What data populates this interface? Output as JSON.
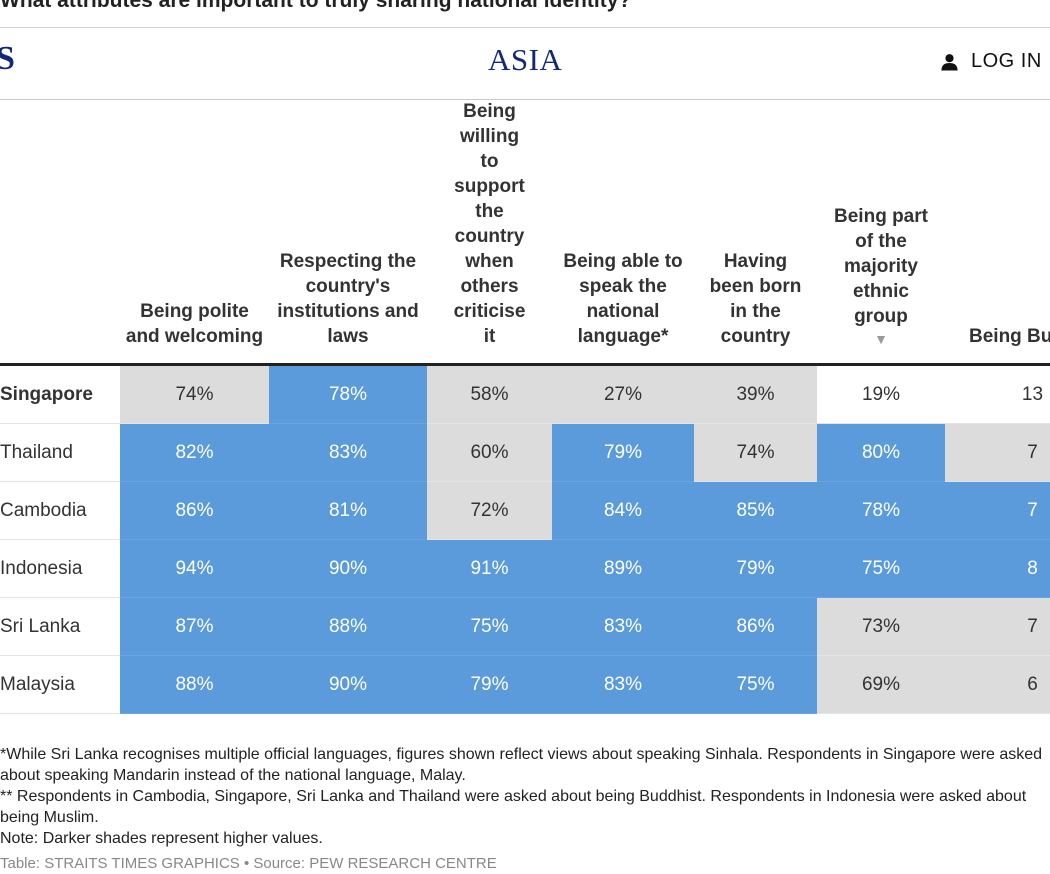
{
  "title": "What attributes are important to truly sharing national identity?",
  "navbar": {
    "brand_fragment": "S",
    "edition": "ASIA",
    "login_label": "LOG IN",
    "brand_color": "#14297a"
  },
  "table": {
    "corner_header": "",
    "columns": [
      "Being polite and welcoming",
      "Respecting the country's institutions and laws",
      "Being willing to support the country when others criticise it",
      "Being able to speak the national language*",
      "Having been born in the country",
      "Being part of the majority ethnic group",
      "Being Buddhist"
    ],
    "sort_indicator": "▼",
    "rows": [
      {
        "country": "Singapore",
        "values": [
          "74%",
          "78%",
          "58%",
          "27%",
          "39%",
          "19%",
          "13"
        ]
      },
      {
        "country": "Thailand",
        "values": [
          "82%",
          "83%",
          "60%",
          "79%",
          "74%",
          "80%",
          "7"
        ]
      },
      {
        "country": "Cambodia",
        "values": [
          "86%",
          "81%",
          "72%",
          "84%",
          "85%",
          "78%",
          "7"
        ]
      },
      {
        "country": "Indonesia",
        "values": [
          "94%",
          "90%",
          "91%",
          "89%",
          "79%",
          "75%",
          "8"
        ]
      },
      {
        "country": "Sri Lanka",
        "values": [
          "87%",
          "88%",
          "75%",
          "83%",
          "86%",
          "73%",
          "7"
        ]
      },
      {
        "country": "Malaysia",
        "values": [
          "88%",
          "90%",
          "79%",
          "83%",
          "75%",
          "69%",
          "6"
        ]
      }
    ],
    "colors": {
      "high": "#5b9bdb",
      "medium": "#dcdcdc",
      "low": "#ffffff"
    }
  },
  "notes": [
    "*While Sri Lanka recognises multiple official languages, figures shown reflect views about speaking Sinhala. Respondents in Singapore were asked about speaking Mandarin instead of the national language, Malay.",
    "** Respondents in Cambodia, Singapore, Sri Lanka and Thailand were asked about being Buddhist. Respondents in Indonesia were asked about being Muslim.",
    "Note: Darker shades represent higher values."
  ],
  "source": "Table: STRAITS TIMES GRAPHICS • Source: PEW RESEARCH CENTRE"
}
